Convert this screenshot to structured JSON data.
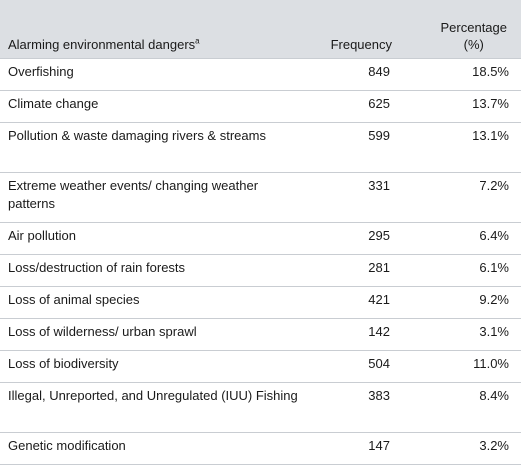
{
  "table": {
    "headers": {
      "label": "Alarming environmental dangers",
      "label_superscript": "a",
      "frequency": "Frequency",
      "percentage_line1": "Percentage",
      "percentage_line2": "(%)"
    },
    "rows": [
      {
        "label": "Overfishing",
        "frequency": "849",
        "percentage": "18.5%"
      },
      {
        "label": "Climate change",
        "frequency": "625",
        "percentage": "13.7%"
      },
      {
        "label": "Pollution & waste damaging rivers & streams",
        "frequency": "599",
        "percentage": "13.1%"
      },
      {
        "label": "Extreme weather events/ changing weather patterns",
        "frequency": "331",
        "percentage": "7.2%"
      },
      {
        "label": "Air pollution",
        "frequency": "295",
        "percentage": "6.4%"
      },
      {
        "label": "Loss/destruction of rain forests",
        "frequency": "281",
        "percentage": "6.1%"
      },
      {
        "label": "Loss of animal species",
        "frequency": "421",
        "percentage": "9.2%"
      },
      {
        "label": "Loss of wilderness/ urban sprawl",
        "frequency": "142",
        "percentage": "3.1%"
      },
      {
        "label": "Loss of biodiversity",
        "frequency": "504",
        "percentage": "11.0%"
      },
      {
        "label": "Illegal, Unreported, and Unregulated (IUU) Fishing",
        "frequency": "383",
        "percentage": "8.4%"
      },
      {
        "label": "Genetic modification",
        "frequency": "147",
        "percentage": "3.2%"
      }
    ]
  }
}
